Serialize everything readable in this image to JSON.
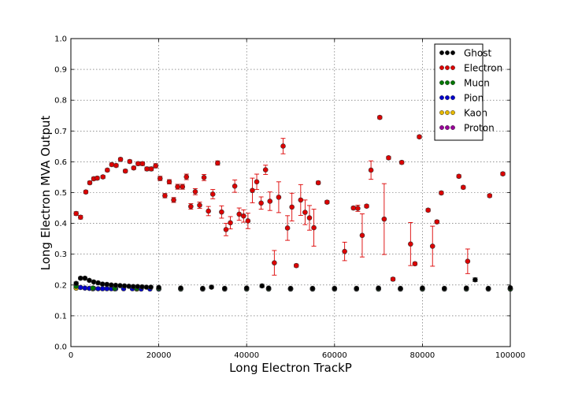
{
  "chart_data": {
    "type": "scatter",
    "xlabel": "Long Electron TrackP",
    "ylabel": "Long Electron MVA Output",
    "xlim": [
      0,
      100000
    ],
    "ylim": [
      0.0,
      1.0
    ],
    "xticks": [
      0,
      20000,
      40000,
      60000,
      80000,
      100000
    ],
    "yticks": [
      0.0,
      0.1,
      0.2,
      0.3,
      0.4,
      0.5,
      0.6,
      0.7,
      0.8,
      0.9,
      1.0
    ],
    "grid": true,
    "legend_position": "top-right",
    "series": [
      {
        "name": "Ghost",
        "color": "#000000",
        "x": [
          1200,
          2200,
          3200,
          4200,
          5200,
          6200,
          7200,
          8200,
          9200,
          10200,
          11200,
          12200,
          13200,
          14200,
          15200,
          16200,
          17200,
          18200,
          20000,
          25000,
          30000,
          32000,
          35000,
          40000,
          43500,
          45000,
          50000,
          55000,
          60000,
          65000,
          70000,
          75000,
          80000,
          85000,
          90000,
          92000,
          95000,
          100000
        ],
        "y": [
          0.205,
          0.222,
          0.222,
          0.215,
          0.21,
          0.207,
          0.203,
          0.202,
          0.2,
          0.199,
          0.198,
          0.197,
          0.196,
          0.195,
          0.195,
          0.194,
          0.193,
          0.193,
          0.192,
          0.19,
          0.189,
          0.193,
          0.189,
          0.19,
          0.197,
          0.19,
          0.189,
          0.189,
          0.189,
          0.189,
          0.19,
          0.189,
          0.19,
          0.189,
          0.19,
          0.217,
          0.189,
          0.191
        ],
        "yerr": [
          0.005,
          0.004,
          0.004,
          0.003,
          0.003,
          0.003,
          0.003,
          0.003,
          0.003,
          0.003,
          0.003,
          0.003,
          0.003,
          0.003,
          0.003,
          0.003,
          0.003,
          0.003,
          0.003,
          0.003,
          0.003,
          0.004,
          0.003,
          0.003,
          0.005,
          0.003,
          0.003,
          0.003,
          0.003,
          0.003,
          0.003,
          0.003,
          0.003,
          0.003,
          0.003,
          0.006,
          0.003,
          0.003
        ]
      },
      {
        "name": "Electron",
        "color": "#dd0000",
        "x": [
          1200,
          2200,
          3400,
          4300,
          5200,
          6000,
          7300,
          8300,
          9300,
          10300,
          11300,
          12400,
          13400,
          14300,
          15300,
          16300,
          17300,
          18300,
          19300,
          20300,
          21400,
          22400,
          23400,
          24300,
          25400,
          26300,
          27300,
          28300,
          29300,
          30300,
          31300,
          32300,
          33400,
          34300,
          35300,
          36300,
          37300,
          38300,
          39300,
          40300,
          41300,
          42300,
          43300,
          44300,
          45300,
          46300,
          47300,
          48300,
          49300,
          50300,
          51300,
          52300,
          53300,
          54300,
          55300,
          56300,
          58300,
          62300,
          64300,
          65300,
          66300,
          67300,
          68300,
          70300,
          71300,
          72300,
          73300,
          75300,
          77300,
          78300,
          79300,
          81300,
          82300,
          83300,
          84300,
          88300,
          89300,
          90300,
          95300,
          98300
        ],
        "y": [
          0.432,
          0.42,
          0.502,
          0.532,
          0.545,
          0.547,
          0.551,
          0.573,
          0.591,
          0.588,
          0.608,
          0.57,
          0.601,
          0.58,
          0.594,
          0.594,
          0.577,
          0.577,
          0.587,
          0.546,
          0.49,
          0.535,
          0.476,
          0.519,
          0.519,
          0.551,
          0.455,
          0.503,
          0.459,
          0.549,
          0.44,
          0.495,
          0.596,
          0.437,
          0.38,
          0.402,
          0.521,
          0.43,
          0.424,
          0.408,
          0.507,
          0.535,
          0.466,
          0.574,
          0.472,
          0.272,
          0.485,
          0.651,
          0.385,
          0.453,
          0.263,
          0.476,
          0.436,
          0.418,
          0.386,
          0.532,
          0.469,
          0.309,
          0.45,
          0.449,
          0.361,
          0.456,
          0.573,
          0.744,
          0.414,
          0.613,
          0.219,
          0.598,
          0.333,
          0.269,
          0.681,
          0.443,
          0.326,
          0.405,
          0.499,
          0.553,
          0.517,
          0.277,
          0.49,
          0.561
        ],
        "yerr": [
          0.006,
          0.006,
          0.005,
          0.005,
          0.005,
          0.005,
          0.005,
          0.005,
          0.005,
          0.005,
          0.005,
          0.005,
          0.005,
          0.005,
          0.006,
          0.006,
          0.006,
          0.006,
          0.007,
          0.007,
          0.007,
          0.007,
          0.008,
          0.008,
          0.008,
          0.009,
          0.009,
          0.01,
          0.01,
          0.01,
          0.015,
          0.015,
          0.007,
          0.02,
          0.02,
          0.02,
          0.02,
          0.02,
          0.02,
          0.025,
          0.04,
          0.025,
          0.02,
          0.015,
          0.03,
          0.04,
          0.05,
          0.025,
          0.04,
          0.045,
          0.005,
          0.05,
          0.04,
          0.04,
          0.06,
          0.005,
          0.005,
          0.03,
          0.005,
          0.01,
          0.07,
          0.005,
          0.03,
          0.005,
          0.115,
          0.005,
          0.005,
          0.005,
          0.07,
          0.005,
          0.005,
          0.005,
          0.065,
          0.005,
          0.005,
          0.005,
          0.005,
          0.04,
          0.005,
          0.005
        ]
      },
      {
        "name": "Muon",
        "color": "#007700",
        "x": [
          1200,
          5000,
          10000,
          15000,
          20000,
          25000,
          30000,
          35000,
          40000,
          45000,
          50000,
          55000,
          60000,
          65000,
          70000,
          75000,
          80000,
          85000,
          90000,
          95000,
          100000
        ],
        "y": [
          0.196,
          0.19,
          0.189,
          0.189,
          0.189,
          0.188,
          0.188,
          0.188,
          0.188,
          0.188,
          0.188,
          0.188,
          0.188,
          0.188,
          0.188,
          0.188,
          0.188,
          0.188,
          0.188,
          0.188,
          0.188
        ],
        "yerr": [
          0.003,
          0.002,
          0.002,
          0.002,
          0.002,
          0.002,
          0.002,
          0.002,
          0.002,
          0.002,
          0.002,
          0.002,
          0.002,
          0.002,
          0.002,
          0.002,
          0.002,
          0.002,
          0.002,
          0.002,
          0.002
        ]
      },
      {
        "name": "Pion",
        "color": "#0000cc",
        "x": [
          1200,
          2200,
          3200,
          4200,
          5200,
          6200,
          7200,
          8200,
          9200,
          10200,
          12000,
          14000,
          16000,
          18000,
          20000,
          25000,
          30000,
          35000,
          40000,
          45000,
          50000,
          55000,
          60000,
          65000,
          70000,
          75000,
          80000,
          85000,
          90000,
          95000,
          100000
        ],
        "y": [
          0.196,
          0.192,
          0.19,
          0.189,
          0.189,
          0.188,
          0.188,
          0.188,
          0.188,
          0.188,
          0.188,
          0.188,
          0.187,
          0.187,
          0.187,
          0.187,
          0.187,
          0.187,
          0.187,
          0.187,
          0.187,
          0.187,
          0.187,
          0.187,
          0.187,
          0.187,
          0.187,
          0.187,
          0.187,
          0.187,
          0.187
        ],
        "yerr": [
          0.002,
          0.002,
          0.002,
          0.002,
          0.002,
          0.002,
          0.002,
          0.002,
          0.002,
          0.002,
          0.002,
          0.002,
          0.002,
          0.002,
          0.002,
          0.002,
          0.002,
          0.002,
          0.002,
          0.002,
          0.002,
          0.002,
          0.002,
          0.002,
          0.002,
          0.002,
          0.002,
          0.002,
          0.002,
          0.002,
          0.002
        ]
      },
      {
        "name": "Kaon",
        "color": "#e6b800",
        "x": [
          1200,
          5000,
          10000,
          15000,
          20000,
          25000,
          30000,
          35000,
          40000,
          45000,
          50000,
          55000,
          60000,
          65000,
          70000,
          75000,
          80000,
          85000,
          90000,
          95000,
          100000
        ],
        "y": [
          0.19,
          0.188,
          0.188,
          0.187,
          0.187,
          0.187,
          0.187,
          0.187,
          0.187,
          0.187,
          0.187,
          0.187,
          0.187,
          0.187,
          0.187,
          0.187,
          0.187,
          0.187,
          0.187,
          0.187,
          0.187
        ],
        "yerr": [
          0.002,
          0.002,
          0.002,
          0.002,
          0.002,
          0.002,
          0.002,
          0.002,
          0.002,
          0.002,
          0.002,
          0.002,
          0.002,
          0.002,
          0.002,
          0.002,
          0.002,
          0.002,
          0.002,
          0.002,
          0.002
        ]
      },
      {
        "name": "Proton",
        "color": "#990099",
        "x": [
          1200,
          5000,
          10000,
          15000,
          20000,
          25000,
          30000,
          35000,
          40000,
          45000,
          50000,
          55000,
          60000,
          65000,
          70000,
          75000,
          80000,
          85000,
          90000,
          95000,
          100000
        ],
        "y": [
          0.19,
          0.188,
          0.188,
          0.187,
          0.187,
          0.187,
          0.187,
          0.187,
          0.187,
          0.187,
          0.187,
          0.187,
          0.187,
          0.187,
          0.187,
          0.187,
          0.187,
          0.187,
          0.187,
          0.187,
          0.187
        ],
        "yerr": [
          0.002,
          0.002,
          0.002,
          0.002,
          0.002,
          0.002,
          0.002,
          0.002,
          0.002,
          0.002,
          0.002,
          0.002,
          0.002,
          0.002,
          0.002,
          0.002,
          0.002,
          0.002,
          0.002,
          0.002,
          0.002
        ]
      }
    ]
  }
}
